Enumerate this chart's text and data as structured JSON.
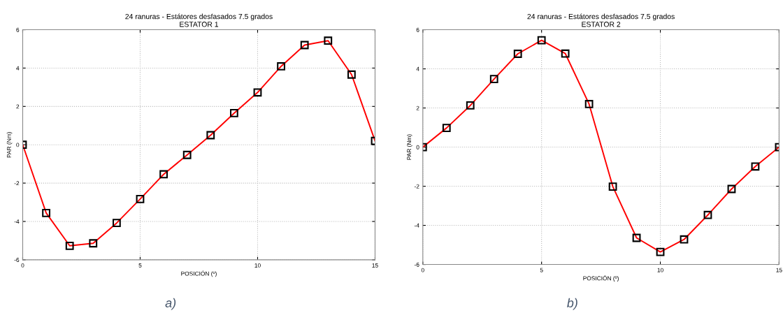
{
  "chart_data": [
    {
      "type": "line",
      "title": "24 ranuras - Estátores desfasados 7.5 grados\nESTATOR 1",
      "xlabel": "POSICIÓN (º)",
      "ylabel": "PAR (Nm)",
      "x": [
        0,
        1,
        2,
        3,
        4,
        5,
        6,
        7,
        8,
        9,
        10,
        11,
        12,
        13,
        14,
        15
      ],
      "series": [
        {
          "color": "#ff0000",
          "values": [
            0,
            -3.56,
            -5.27,
            -5.14,
            -4.08,
            -2.83,
            -1.54,
            -0.53,
            0.5,
            1.65,
            2.73,
            4.09,
            5.2,
            5.43,
            3.66,
            0.2
          ]
        }
      ],
      "xlim": [
        0,
        15
      ],
      "xticks": [
        0,
        5,
        10,
        15
      ],
      "ylim": [
        -6,
        6
      ],
      "yticks": [
        -6,
        -4,
        -2,
        0,
        2,
        4,
        6
      ],
      "grid": true,
      "marker": "square",
      "line_style": "solid",
      "annotations": [
        "a)"
      ]
    },
    {
      "type": "line",
      "title": "24 ranuras - Estátores desfasados 7.5 grados\nESTATOR 2",
      "xlabel": "POSICIÓN (º)",
      "ylabel": "PAR (Nm)",
      "x": [
        0,
        1,
        2,
        3,
        4,
        5,
        6,
        7,
        8,
        9,
        10,
        11,
        12,
        13,
        14,
        15
      ],
      "series": [
        {
          "color": "#ff0000",
          "values": [
            0,
            0.98,
            2.13,
            3.48,
            4.77,
            5.46,
            4.78,
            2.2,
            -2.02,
            -4.64,
            -5.36,
            -4.72,
            -3.47,
            -2.14,
            -0.99,
            0
          ]
        }
      ],
      "xlim": [
        0,
        15
      ],
      "xticks": [
        0,
        5,
        10,
        15
      ],
      "ylim": [
        -6,
        6
      ],
      "yticks": [
        -6,
        -4,
        -2,
        0,
        2,
        4,
        6
      ],
      "grid": true,
      "marker": "square",
      "line_style": "solid",
      "annotations": [
        "b)"
      ]
    }
  ]
}
